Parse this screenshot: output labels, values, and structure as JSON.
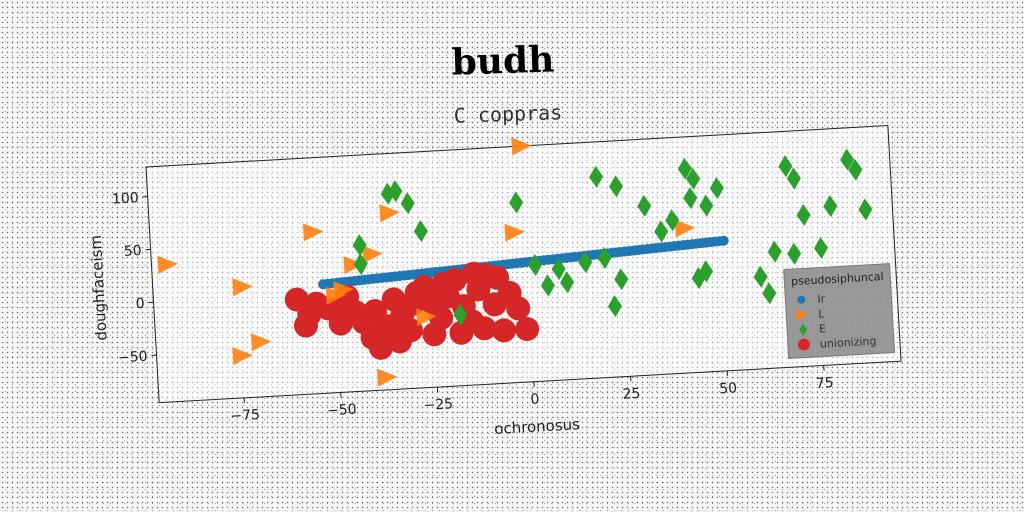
{
  "chart_data": {
    "type": "scatter",
    "title": "budh",
    "subtitle": "C coppras",
    "xlabel": "ochronosus",
    "ylabel": "doughfaceism",
    "xlim": [
      -97,
      95
    ],
    "ylim": [
      -95,
      128
    ],
    "xticks": [
      -75,
      -50,
      -25,
      0,
      25,
      50,
      75
    ],
    "yticks": [
      -50,
      0,
      50,
      100
    ],
    "xtick_labels": [
      "−75",
      "−50",
      "−25",
      "0",
      "25",
      "50",
      "75"
    ],
    "ytick_labels": [
      "−50",
      "0",
      "50",
      "100"
    ],
    "grid": false,
    "legend": {
      "title": "pseudosiphuncal",
      "placement": "lower-right",
      "entries": [
        "Ir",
        "L",
        "E",
        "unionizing"
      ]
    },
    "series": [
      {
        "name": "Ir",
        "marker": "circle",
        "color": "#1f77b4",
        "line": {
          "x_start": -53,
          "y_start": 8,
          "x_end": 51,
          "y_end": 28,
          "count": 90
        }
      },
      {
        "name": "L",
        "marker": "triangle-right",
        "color": "#ff7f0e",
        "points": [
          [
            0,
            128
          ],
          [
            -93,
            35
          ],
          [
            -74,
            10
          ],
          [
            -70,
            -43
          ],
          [
            -75,
            -55
          ],
          [
            -55,
            58
          ],
          [
            -35,
            72
          ],
          [
            -40,
            34
          ],
          [
            -45,
            25
          ],
          [
            -50,
            -3
          ],
          [
            -38,
            -83
          ],
          [
            -3,
            47
          ],
          [
            41,
            42
          ],
          [
            -48,
            2
          ],
          [
            -27,
            -28
          ]
        ]
      },
      {
        "name": "E",
        "marker": "diamond",
        "color": "#2ca02c",
        "points": [
          [
            -35,
            90
          ],
          [
            -33,
            92
          ],
          [
            -30,
            80
          ],
          [
            -27,
            53
          ],
          [
            -43,
            43
          ],
          [
            -43,
            25
          ],
          [
            -2,
            75
          ],
          [
            19,
            95
          ],
          [
            24,
            85
          ],
          [
            31,
            65
          ],
          [
            35,
            40
          ],
          [
            38,
            50
          ],
          [
            42,
            98
          ],
          [
            44,
            88
          ],
          [
            43,
            70
          ],
          [
            47,
            62
          ],
          [
            50,
            78
          ],
          [
            68,
            95
          ],
          [
            70,
            83
          ],
          [
            72,
            48
          ],
          [
            79,
            55
          ],
          [
            84,
            98
          ],
          [
            86,
            88
          ],
          [
            88,
            50
          ],
          [
            64,
            15
          ],
          [
            69,
            12
          ],
          [
            76,
            16
          ],
          [
            60,
            -8
          ],
          [
            62,
            -24
          ],
          [
            44,
            -6
          ],
          [
            46,
            0
          ],
          [
            15,
            15
          ],
          [
            20,
            18
          ],
          [
            22,
            -28
          ],
          [
            24,
            -3
          ],
          [
            2,
            15
          ],
          [
            5,
            -5
          ],
          [
            8,
            10
          ],
          [
            10,
            -3
          ],
          [
            -18,
            -28
          ]
        ]
      },
      {
        "name": "unionizing",
        "marker": "circle",
        "color": "#d62728",
        "points": [
          [
            -60,
            -5
          ],
          [
            -57,
            -20
          ],
          [
            -58,
            -30
          ],
          [
            -52,
            -15
          ],
          [
            -49,
            -30
          ],
          [
            -47,
            -5
          ],
          [
            -45,
            -20
          ],
          [
            -43,
            -30
          ],
          [
            -41,
            -45
          ],
          [
            -39,
            -55
          ],
          [
            -37,
            -35
          ],
          [
            -35,
            -10
          ],
          [
            -33,
            -25
          ],
          [
            -31,
            -40
          ],
          [
            -29,
            -5
          ],
          [
            -27,
            0
          ],
          [
            -25,
            -15
          ],
          [
            -23,
            -30
          ],
          [
            -21,
            -10
          ],
          [
            -19,
            5
          ],
          [
            -17,
            -20
          ],
          [
            -15,
            -35
          ],
          [
            -13,
            -5
          ],
          [
            -11,
            8
          ],
          [
            -9,
            -20
          ],
          [
            -7,
            -45
          ],
          [
            -5,
            -10
          ],
          [
            -3,
            -25
          ],
          [
            -1,
            -45
          ],
          [
            -34,
            -50
          ],
          [
            -25,
            -45
          ],
          [
            -18,
            -45
          ],
          [
            -12,
            -42
          ],
          [
            -40,
            -20
          ],
          [
            -30,
            -15
          ],
          [
            -22,
            2
          ],
          [
            -14,
            10
          ],
          [
            -8,
            5
          ],
          [
            -50,
            -18
          ],
          [
            -55,
            -10
          ]
        ]
      }
    ]
  }
}
